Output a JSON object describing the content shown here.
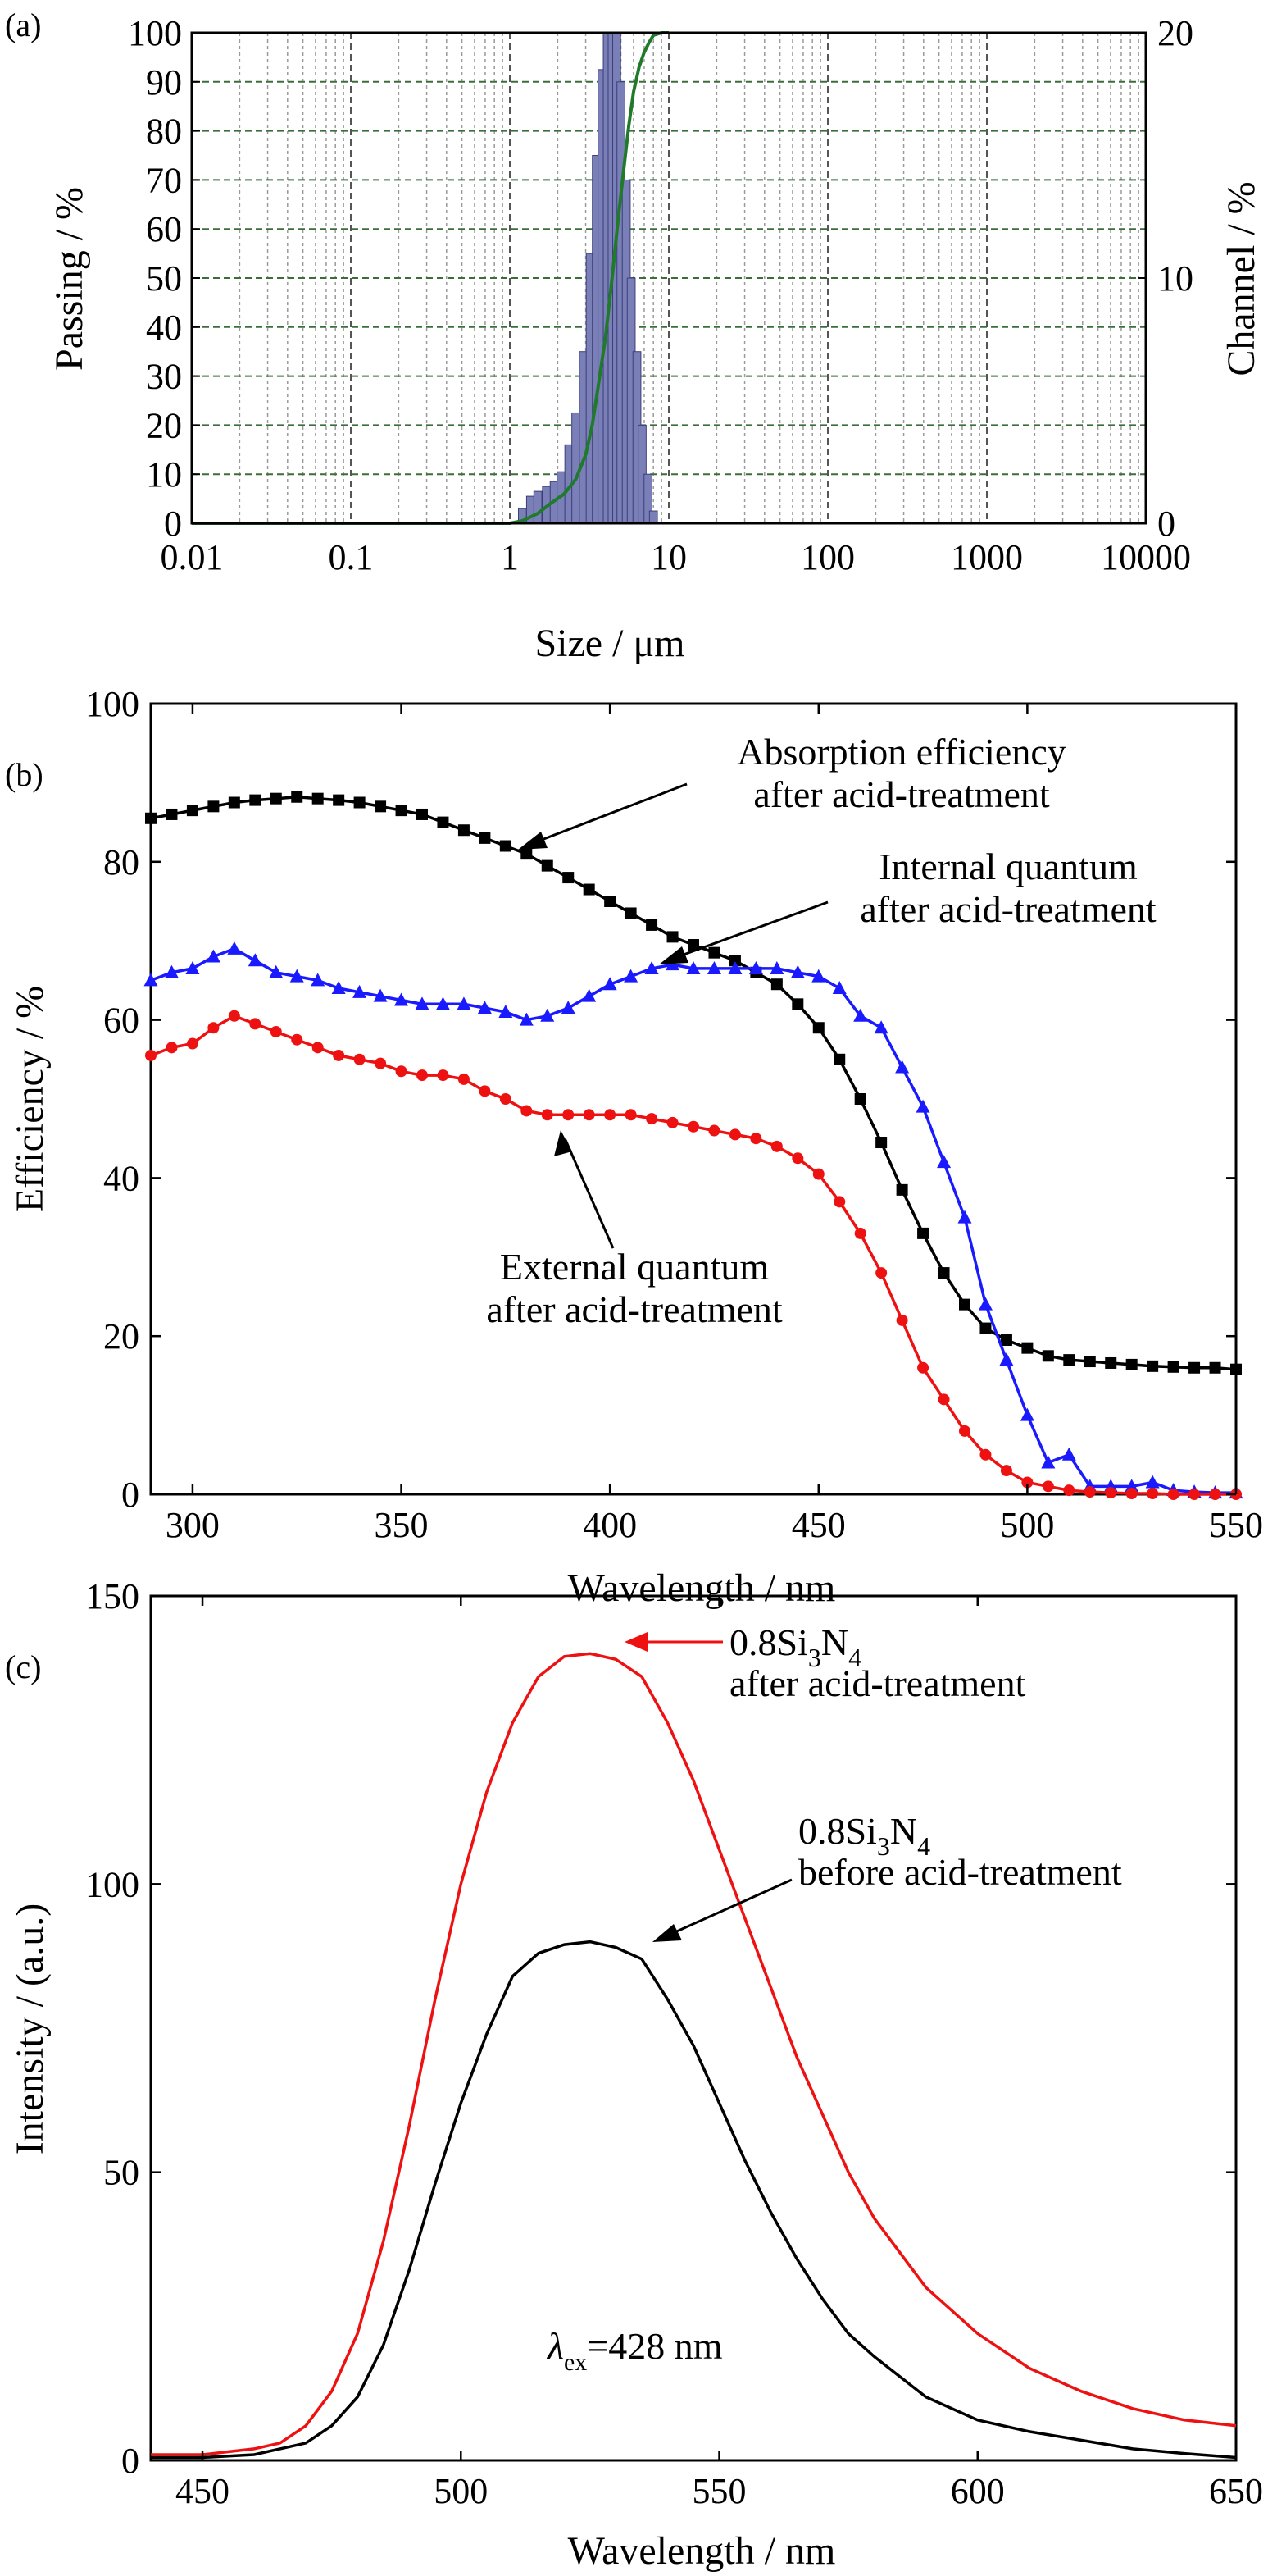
{
  "figure": {
    "panels": [
      "(a)",
      "(b)",
      "(c)"
    ]
  },
  "chart_data": [
    {
      "panel": "(a)",
      "type": "bar",
      "xlabel": "Size / μm",
      "ylabel_left": "Passing / %",
      "ylabel_right": "Channel / %",
      "x_scale": "log",
      "xlim": [
        0.01,
        10000
      ],
      "ylim_left": [
        0,
        100
      ],
      "ylim_right": [
        0,
        20
      ],
      "grid": true,
      "x_ticks": [
        "0.01",
        "0.1",
        "1",
        "10",
        "100",
        "1000",
        "10000"
      ],
      "y_ticks_left": [
        "0",
        "10",
        "20",
        "30",
        "40",
        "50",
        "60",
        "70",
        "80",
        "90",
        "100"
      ],
      "y_ticks_right": [
        "0",
        "10",
        "20"
      ],
      "colors": {
        "bars": "#7a7fb8",
        "bar_edge": "#3b3f78",
        "passing_line": "#1f7a2a"
      },
      "series": [
        {
          "kind": "bar",
          "axis": "right",
          "x": [
            1.2,
            1.35,
            1.5,
            1.7,
            1.9,
            2.1,
            2.35,
            2.6,
            2.9,
            3.2,
            3.5,
            3.8,
            4.1,
            4.4,
            4.7,
            5.0,
            5.4,
            5.8,
            6.3,
            6.8,
            7.4,
            8.0
          ],
          "values": [
            0.6,
            1.1,
            1.3,
            1.5,
            1.7,
            2.1,
            3.2,
            4.5,
            7.0,
            11.0,
            15.0,
            18.5,
            20.0,
            20.0,
            20.0,
            18.0,
            14.0,
            10.0,
            7.0,
            4.0,
            2.0,
            0.5
          ]
        },
        {
          "kind": "line",
          "axis": "left",
          "x": [
            0.01,
            0.1,
            1.0,
            1.2,
            1.5,
            1.8,
            2.2,
            2.6,
            3.0,
            3.3,
            3.6,
            4.0,
            4.4,
            4.8,
            5.2,
            5.6,
            6.0,
            6.5,
            7.0,
            7.5,
            8.0,
            9.0,
            10.0
          ],
          "values": [
            0,
            0,
            0,
            0.5,
            2,
            4,
            6,
            9,
            14,
            20,
            28,
            38,
            50,
            62,
            72,
            81,
            88,
            93,
            96,
            98,
            99.5,
            100,
            100
          ]
        }
      ]
    },
    {
      "panel": "(b)",
      "type": "line",
      "xlabel": "Wavelength / nm",
      "ylabel": "Efficiency / %",
      "xlim": [
        290,
        550
      ],
      "ylim": [
        0,
        100
      ],
      "x_ticks": [
        "300",
        "350",
        "400",
        "450",
        "500",
        "550"
      ],
      "y_ticks": [
        "0",
        "20",
        "40",
        "60",
        "80",
        "100"
      ],
      "grid": false,
      "x": [
        290,
        295,
        300,
        305,
        310,
        315,
        320,
        325,
        330,
        335,
        340,
        345,
        350,
        355,
        360,
        365,
        370,
        375,
        380,
        385,
        390,
        395,
        400,
        405,
        410,
        415,
        420,
        425,
        430,
        435,
        440,
        445,
        450,
        455,
        460,
        465,
        470,
        475,
        480,
        485,
        490,
        495,
        500,
        505,
        510,
        515,
        520,
        525,
        530,
        535,
        540,
        545,
        550
      ],
      "series": [
        {
          "marker": "square",
          "color": "#000000",
          "values": [
            85.5,
            86,
            86.5,
            87,
            87.5,
            87.8,
            88,
            88.2,
            88,
            87.8,
            87.5,
            87,
            86.5,
            86,
            85,
            84,
            83,
            82,
            81,
            79.5,
            78,
            76.5,
            75,
            73.5,
            72,
            70.5,
            69.5,
            68.5,
            67.5,
            66,
            64.5,
            62,
            59,
            55,
            50,
            44.5,
            38.5,
            33,
            28,
            24,
            21,
            19.5,
            18.5,
            17.5,
            17,
            16.8,
            16.6,
            16.4,
            16.2,
            16.1,
            16,
            16,
            15.8
          ]
        },
        {
          "marker": "triangle",
          "color": "#1a1aff",
          "values": [
            65,
            66,
            66.5,
            68,
            69,
            67.5,
            66,
            65.5,
            65,
            64,
            63.5,
            63,
            62.5,
            62,
            62,
            62,
            61.5,
            61,
            60,
            60.5,
            61.5,
            63,
            64.5,
            65.5,
            66.5,
            67,
            66.5,
            66.5,
            66.5,
            66.5,
            66.5,
            66,
            65.5,
            64,
            60.5,
            59,
            54,
            49,
            42,
            35,
            24,
            17,
            10,
            4,
            5,
            1,
            1,
            1,
            1.5,
            0.5,
            0.3,
            0.2,
            0.2
          ]
        },
        {
          "marker": "circle",
          "color": "#ee1111",
          "values": [
            55.5,
            56.5,
            57,
            59,
            60.5,
            59.5,
            58.5,
            57.5,
            56.5,
            55.5,
            55,
            54.5,
            53.5,
            53,
            53,
            52.5,
            51,
            50,
            48.5,
            48,
            48,
            48,
            48,
            48,
            47.5,
            47,
            46.5,
            46,
            45.5,
            45,
            44,
            42.5,
            40.5,
            37,
            33,
            28,
            22,
            16,
            12,
            8,
            5,
            3,
            1.5,
            1,
            0.5,
            0.3,
            0.2,
            0.1,
            0.1,
            0,
            0,
            0,
            0
          ]
        }
      ],
      "annotations": [
        {
          "line1": "Absorption efficiency",
          "line2": "after acid-treatment"
        },
        {
          "line1": "Internal quantum",
          "line2": "after acid-treatment"
        },
        {
          "line1": "External quantum",
          "line2": "after acid-treatment"
        }
      ]
    },
    {
      "panel": "(c)",
      "type": "line",
      "xlabel": "Wavelength / nm",
      "ylabel": "Intensity / (a.u.)",
      "xlim": [
        440,
        650
      ],
      "ylim": [
        0,
        150
      ],
      "x_ticks": [
        "450",
        "500",
        "550",
        "600",
        "650"
      ],
      "y_ticks": [
        "0",
        "50",
        "100",
        "150"
      ],
      "grid": false,
      "x": [
        440,
        450,
        460,
        465,
        470,
        475,
        480,
        485,
        490,
        495,
        500,
        505,
        510,
        515,
        520,
        525,
        530,
        535,
        540,
        545,
        550,
        555,
        560,
        565,
        570,
        575,
        580,
        590,
        600,
        610,
        620,
        630,
        640,
        650
      ],
      "series": [
        {
          "color": "#ee1111",
          "values": [
            1,
            1,
            2,
            3,
            6,
            12,
            22,
            38,
            58,
            80,
            100,
            116,
            128,
            136,
            139.5,
            140,
            139,
            136,
            128,
            118,
            106,
            94,
            82,
            70,
            60,
            50,
            42,
            30,
            22,
            16,
            12,
            9,
            7,
            6
          ]
        },
        {
          "color": "#000000",
          "values": [
            0.5,
            0.5,
            1,
            2,
            3,
            6,
            11,
            20,
            33,
            48,
            62,
            74,
            84,
            88,
            89.5,
            90,
            89,
            87,
            80,
            72,
            62,
            52,
            43,
            35,
            28,
            22,
            18,
            11,
            7,
            5,
            3.5,
            2,
            1.2,
            0.5
          ]
        }
      ],
      "annotations": [
        {
          "prefix": "0.8Si",
          "sub1": "3",
          "mid": "N",
          "sub2": "4",
          "line2": "after acid-treatment",
          "color": "#ee1111"
        },
        {
          "prefix": "0.8Si",
          "sub1": "3",
          "mid": "N",
          "sub2": "4",
          "line2": "before acid-treatment",
          "color": "#000000"
        },
        {
          "lambda": "λ",
          "sub": "ex",
          "rest": "=428 nm"
        }
      ]
    }
  ]
}
